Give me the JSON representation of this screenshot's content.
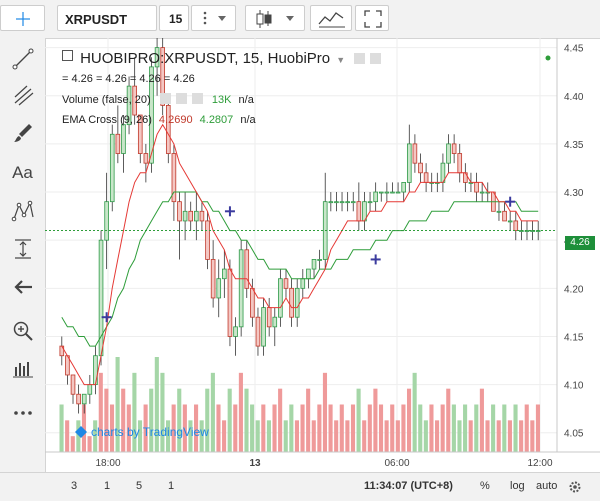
{
  "toolbar": {
    "symbol": "XRPUSDT",
    "interval": "15",
    "menu_icon": "vertical-dots-icon",
    "chart_type_icon": "candles-icon",
    "indicators_icon": "indicators-icon",
    "fullscreen_icon": "fullscreen-icon"
  },
  "sidebar": {
    "tools": [
      "crosshair-icon",
      "trend-line-icon",
      "pitchfork-icon",
      "brush-icon",
      "text-icon",
      "pattern-icon",
      "measure-icon",
      "back-arrow-icon",
      "zoom-in-icon",
      "long-position-icon",
      "more-icon"
    ],
    "text_tool_label": "Aa"
  },
  "legend": {
    "title": "HUOBIPRO:XRPUSDT, 15, HuobiPro",
    "ohlc": "= 4.26 = 4.26 = 4.26 = 4.26",
    "volume_label": "Volume (false, 20)",
    "volume_value": "13K",
    "volume_na": "n/a",
    "ema_label": "EMA Cross (9, 26)",
    "ema_fast": "4.2690",
    "ema_slow": "4.2807",
    "ema_na": "n/a"
  },
  "watermark": "charts by TradingView",
  "last_price": "4.26",
  "bottom": {
    "ranges": [
      "3",
      "1",
      "5",
      "1"
    ],
    "time": "11:34:07 (UTC+8)",
    "percent": "%",
    "log": "log",
    "auto": "auto",
    "settings_icon": "gear-icon"
  },
  "colors": {
    "up": "#2f9a49",
    "down": "#c0392b",
    "up_fill": "#c8e6c9",
    "down_fill": "#f4c7c3",
    "vol_up": "#a5d6a7",
    "vol_down": "#ef9a9a",
    "ema_fast": "#e53935",
    "ema_slow": "#2e9d3a",
    "cross": "#3b3b9e"
  },
  "chart_data": {
    "type": "candlestick",
    "y_ticks": [
      "4.45",
      "4.40",
      "4.35",
      "4.30",
      "4.25",
      "4.20",
      "4.15",
      "4.10",
      "4.05"
    ],
    "x_labels": [
      "18:00",
      "13",
      "06:00",
      "12:00"
    ],
    "ylim": [
      4.03,
      4.46
    ],
    "candles": [
      [
        4.14,
        4.15,
        4.12,
        4.13
      ],
      [
        4.13,
        4.13,
        4.1,
        4.11
      ],
      [
        4.11,
        4.11,
        4.08,
        4.09
      ],
      [
        4.09,
        4.1,
        4.07,
        4.08
      ],
      [
        4.08,
        4.09,
        4.07,
        4.09
      ],
      [
        4.09,
        4.11,
        4.08,
        4.1
      ],
      [
        4.1,
        4.14,
        4.09,
        4.13
      ],
      [
        4.13,
        4.26,
        4.12,
        4.25
      ],
      [
        4.25,
        4.32,
        4.22,
        4.29
      ],
      [
        4.29,
        4.37,
        4.28,
        4.36
      ],
      [
        4.36,
        4.39,
        4.33,
        4.34
      ],
      [
        4.34,
        4.38,
        4.32,
        4.37
      ],
      [
        4.37,
        4.42,
        4.36,
        4.41
      ],
      [
        4.41,
        4.44,
        4.37,
        4.38
      ],
      [
        4.38,
        4.38,
        4.33,
        4.34
      ],
      [
        4.34,
        4.35,
        4.31,
        4.33
      ],
      [
        4.33,
        4.44,
        4.32,
        4.43
      ],
      [
        4.43,
        4.46,
        4.4,
        4.45
      ],
      [
        4.45,
        4.46,
        4.38,
        4.39
      ],
      [
        4.39,
        4.4,
        4.33,
        4.34
      ],
      [
        4.34,
        4.35,
        4.27,
        4.29
      ],
      [
        4.29,
        4.3,
        4.23,
        4.27
      ],
      [
        4.27,
        4.3,
        4.25,
        4.28
      ],
      [
        4.28,
        4.29,
        4.26,
        4.27
      ],
      [
        4.27,
        4.3,
        4.25,
        4.28
      ],
      [
        4.28,
        4.29,
        4.26,
        4.27
      ],
      [
        4.27,
        4.28,
        4.22,
        4.23
      ],
      [
        4.23,
        4.25,
        4.18,
        4.19
      ],
      [
        4.19,
        4.23,
        4.17,
        4.21
      ],
      [
        4.21,
        4.24,
        4.19,
        4.22
      ],
      [
        4.22,
        4.23,
        4.14,
        4.15
      ],
      [
        4.15,
        4.17,
        4.13,
        4.16
      ],
      [
        4.16,
        4.25,
        4.15,
        4.24
      ],
      [
        4.24,
        4.25,
        4.19,
        4.2
      ],
      [
        4.2,
        4.21,
        4.16,
        4.17
      ],
      [
        4.17,
        4.18,
        4.13,
        4.14
      ],
      [
        4.14,
        4.19,
        4.13,
        4.18
      ],
      [
        4.18,
        4.19,
        4.15,
        4.16
      ],
      [
        4.16,
        4.18,
        4.14,
        4.17
      ],
      [
        4.17,
        4.22,
        4.16,
        4.21
      ],
      [
        4.21,
        4.22,
        4.19,
        4.2
      ],
      [
        4.2,
        4.21,
        4.16,
        4.17
      ],
      [
        4.17,
        4.21,
        4.16,
        4.2
      ],
      [
        4.2,
        4.22,
        4.19,
        4.21
      ],
      [
        4.21,
        4.22,
        4.2,
        4.22
      ],
      [
        4.22,
        4.23,
        4.21,
        4.23
      ],
      [
        4.23,
        4.24,
        4.22,
        4.23
      ],
      [
        4.23,
        4.32,
        4.22,
        4.29
      ],
      [
        4.29,
        4.3,
        4.28,
        4.29
      ],
      [
        4.29,
        4.3,
        4.28,
        4.29
      ],
      [
        4.29,
        4.3,
        4.28,
        4.29
      ],
      [
        4.29,
        4.3,
        4.28,
        4.29
      ],
      [
        4.29,
        4.3,
        4.28,
        4.29
      ],
      [
        4.29,
        4.31,
        4.26,
        4.27
      ],
      [
        4.27,
        4.3,
        4.26,
        4.29
      ],
      [
        4.29,
        4.3,
        4.28,
        4.29
      ],
      [
        4.29,
        4.31,
        4.28,
        4.3
      ],
      [
        4.3,
        4.3,
        4.29,
        4.3
      ],
      [
        4.3,
        4.31,
        4.29,
        4.3
      ],
      [
        4.3,
        4.31,
        4.3,
        4.3
      ],
      [
        4.3,
        4.31,
        4.3,
        4.3
      ],
      [
        4.3,
        4.31,
        4.29,
        4.31
      ],
      [
        4.31,
        4.37,
        4.3,
        4.35
      ],
      [
        4.35,
        4.36,
        4.32,
        4.33
      ],
      [
        4.33,
        4.34,
        4.31,
        4.32
      ],
      [
        4.32,
        4.33,
        4.3,
        4.31
      ],
      [
        4.31,
        4.32,
        4.3,
        4.31
      ],
      [
        4.31,
        4.32,
        4.3,
        4.31
      ],
      [
        4.31,
        4.34,
        4.3,
        4.33
      ],
      [
        4.33,
        4.36,
        4.32,
        4.35
      ],
      [
        4.35,
        4.36,
        4.33,
        4.34
      ],
      [
        4.34,
        4.35,
        4.31,
        4.32
      ],
      [
        4.32,
        4.33,
        4.3,
        4.31
      ],
      [
        4.31,
        4.32,
        4.3,
        4.31
      ],
      [
        4.31,
        4.32,
        4.29,
        4.3
      ],
      [
        4.3,
        4.31,
        4.29,
        4.3
      ],
      [
        4.3,
        4.31,
        4.29,
        4.3
      ],
      [
        4.3,
        4.3,
        4.28,
        4.28
      ],
      [
        4.28,
        4.29,
        4.27,
        4.28
      ],
      [
        4.28,
        4.29,
        4.27,
        4.27
      ],
      [
        4.27,
        4.28,
        4.26,
        4.27
      ],
      [
        4.27,
        4.28,
        4.25,
        4.26
      ],
      [
        4.26,
        4.27,
        4.25,
        4.26
      ],
      [
        4.26,
        4.27,
        4.25,
        4.26
      ],
      [
        4.26,
        4.27,
        4.25,
        4.26
      ],
      [
        4.26,
        4.27,
        4.25,
        4.26
      ]
    ],
    "volumes": [
      3,
      2,
      1,
      2,
      3,
      1,
      2,
      5,
      4,
      3,
      6,
      4,
      3,
      5,
      2,
      3,
      4,
      6,
      5,
      2,
      3,
      4,
      3,
      2,
      3,
      2,
      4,
      5,
      3,
      2,
      4,
      3,
      5,
      4,
      3,
      2,
      3,
      2,
      3,
      4,
      2,
      3,
      2,
      3,
      4,
      2,
      3,
      5,
      3,
      2,
      3,
      2,
      3,
      4,
      2,
      3,
      4,
      3,
      2,
      3,
      2,
      3,
      4,
      5,
      3,
      2,
      3,
      2,
      3,
      4,
      3,
      2,
      3,
      2,
      3,
      4,
      2,
      3,
      2,
      3,
      2,
      3,
      2,
      3,
      2,
      3
    ],
    "vol_dir": [
      0,
      1,
      1,
      0,
      1,
      1,
      0,
      1,
      1,
      1,
      0,
      1,
      1,
      0,
      0,
      1,
      0,
      0,
      0,
      0,
      1,
      0,
      1,
      0,
      1,
      0,
      0,
      0,
      1,
      1,
      0,
      1,
      1,
      0,
      0,
      0,
      1,
      0,
      1,
      1,
      0,
      0,
      1,
      1,
      1,
      1,
      1,
      1,
      1,
      1,
      1,
      1,
      1,
      0,
      1,
      1,
      1,
      1,
      1,
      1,
      1,
      1,
      1,
      0,
      0,
      0,
      1,
      1,
      1,
      1,
      0,
      0,
      0,
      1,
      0,
      1,
      1,
      0,
      1,
      0,
      1,
      0,
      1,
      1,
      1,
      1
    ],
    "ema_fast": [
      4.14,
      4.13,
      4.12,
      4.11,
      4.1,
      4.1,
      4.1,
      4.13,
      4.16,
      4.2,
      4.23,
      4.26,
      4.29,
      4.31,
      4.32,
      4.32,
      4.34,
      4.36,
      4.37,
      4.36,
      4.35,
      4.33,
      4.32,
      4.31,
      4.3,
      4.29,
      4.28,
      4.26,
      4.25,
      4.24,
      4.22,
      4.21,
      4.21,
      4.21,
      4.2,
      4.19,
      4.19,
      4.18,
      4.18,
      4.18,
      4.19,
      4.18,
      4.18,
      4.19,
      4.19,
      4.2,
      4.21,
      4.22,
      4.24,
      4.25,
      4.26,
      4.27,
      4.27,
      4.27,
      4.27,
      4.28,
      4.28,
      4.28,
      4.29,
      4.29,
      4.29,
      4.29,
      4.3,
      4.3,
      4.31,
      4.31,
      4.31,
      4.31,
      4.31,
      4.32,
      4.32,
      4.32,
      4.32,
      4.31,
      4.31,
      4.31,
      4.3,
      4.3,
      4.29,
      4.29,
      4.28,
      4.28,
      4.27,
      4.27,
      4.27,
      4.27
    ],
    "ema_slow": [
      4.17,
      4.16,
      4.16,
      4.15,
      4.15,
      4.14,
      4.14,
      4.15,
      4.16,
      4.17,
      4.19,
      4.2,
      4.22,
      4.23,
      4.25,
      4.26,
      4.27,
      4.28,
      4.29,
      4.29,
      4.3,
      4.3,
      4.3,
      4.3,
      4.3,
      4.29,
      4.29,
      4.28,
      4.28,
      4.27,
      4.26,
      4.26,
      4.25,
      4.25,
      4.24,
      4.23,
      4.23,
      4.22,
      4.22,
      4.22,
      4.22,
      4.21,
      4.21,
      4.21,
      4.21,
      4.21,
      4.22,
      4.22,
      4.22,
      4.23,
      4.23,
      4.23,
      4.24,
      4.24,
      4.24,
      4.24,
      4.25,
      4.25,
      4.25,
      4.26,
      4.26,
      4.26,
      4.27,
      4.27,
      4.27,
      4.27,
      4.28,
      4.28,
      4.28,
      4.28,
      4.29,
      4.29,
      4.29,
      4.29,
      4.29,
      4.29,
      4.29,
      4.29,
      4.29,
      4.29,
      4.29,
      4.29,
      4.28,
      4.28,
      4.28,
      4.28
    ],
    "crosses": [
      {
        "i": 8,
        "v": 4.17
      },
      {
        "i": 30,
        "v": 4.28
      },
      {
        "i": 56,
        "v": 4.23
      },
      {
        "i": 80,
        "v": 4.29
      }
    ]
  }
}
